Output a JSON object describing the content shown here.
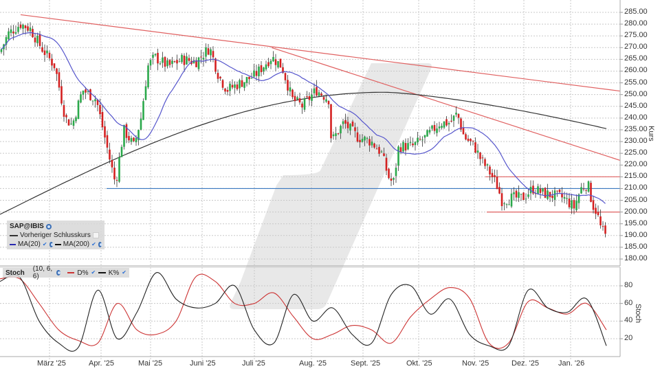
{
  "chart_data": [
    {
      "type": "candlestick",
      "title": "SAP@IBIS",
      "ylabel": "Kurs",
      "ylim": [
        177,
        288
      ],
      "yticks": [
        "285.00",
        "280.00",
        "275.00",
        "270.00",
        "265.00",
        "260.00",
        "255.00",
        "250.00",
        "245.00",
        "240.00",
        "235.00",
        "230.00",
        "225.00",
        "220.00",
        "215.00",
        "210.00",
        "205.00",
        "200.00",
        "195.00",
        "190.00",
        "185.00",
        "180.00"
      ],
      "x_ticks": [
        "März '25",
        "Apr. '25",
        "Mai '25",
        "Juni '25",
        "Juli '25",
        "Aug. '25",
        "Sept. '25",
        "Okt. '25",
        "Nov. '25",
        "Dez. '25",
        "Jan. '26"
      ],
      "legend": [
        "SAP@IBIS",
        "Vorheriger Schlusskurs",
        "MA(20)",
        "MA(200)"
      ],
      "approx_closes_by_month": {
        "Feb '25": 270,
        "März '25": 245,
        "Apr. '25": 235,
        "Mai '25": 265,
        "Juni '25": 268,
        "Juli '25": 262,
        "Aug. '25": 235,
        "Sept. '25": 225,
        "Okt. '25": 235,
        "Nov. '25": 212,
        "Dez. '25": 207,
        "Jan. '26": 190
      },
      "extremes": {
        "high": 284,
        "high_date": "Feb '25",
        "low_recent": 187,
        "low_recent_date": "Jan. '26"
      },
      "trendlines": [
        {
          "color": "#e06060",
          "from": {
            "x": "Feb '25",
            "y": 284
          },
          "to": {
            "x": "end",
            "y": 251.5
          },
          "label": "long downtrend resistance"
        },
        {
          "color": "#e06060",
          "from": {
            "x": "Juli '25",
            "y": 270
          },
          "to": {
            "x": "end",
            "y": 222
          },
          "label": "short downtrend resistance"
        },
        {
          "color": "#e06060",
          "from": {
            "x": "Nov. '25",
            "y": 215
          },
          "to": {
            "x": "end",
            "y": 215
          },
          "label": "horizontal resistance"
        },
        {
          "color": "#e06060",
          "from": {
            "x": "Nov. '25",
            "y": 200
          },
          "to": {
            "x": "end",
            "y": 200
          },
          "label": "horizontal support"
        },
        {
          "color": "#3a78c0",
          "from": {
            "x": "Apr. '25",
            "y": 210
          },
          "to": {
            "x": "end",
            "y": 210
          },
          "label": "horizontal support"
        }
      ],
      "series": [
        {
          "name": "MA(20)",
          "color": "#5555cc"
        },
        {
          "name": "MA(200)",
          "color": "#333333"
        }
      ]
    },
    {
      "type": "line",
      "title": "Stoch (10, 6, 6)",
      "ylabel": "Stoch",
      "yticks": [
        "80",
        "60",
        "40",
        "20"
      ],
      "ylim": [
        7,
        94
      ],
      "series": [
        {
          "name": "D%",
          "color": "#cc3333",
          "values_approx": [
            88,
            88,
            60,
            30,
            18,
            15,
            60,
            30,
            25,
            40,
            90,
            85,
            60,
            60,
            72,
            45,
            20,
            25,
            35,
            30,
            15,
            45,
            65,
            78,
            66,
            15,
            15,
            62,
            55,
            48,
            60,
            30
          ]
        },
        {
          "name": "K%",
          "color": "#222222",
          "values_approx": [
            85,
            90,
            40,
            15,
            10,
            75,
            20,
            50,
            95,
            65,
            55,
            60,
            80,
            30,
            15,
            70,
            40,
            55,
            25,
            15,
            70,
            80,
            48,
            65,
            25,
            12,
            12,
            75,
            55,
            50,
            65,
            12
          ]
        }
      ]
    }
  ],
  "legend_main": {
    "title": "SAP@IBIS",
    "prev_close": "Vorheriger Schlusskurs",
    "ma20": "MA(20)",
    "ma200": "MA(200)"
  },
  "legend_stoch": {
    "title": "Stoch",
    "params": "(10, 6, 6)",
    "d": "D%",
    "k": "K%"
  },
  "axis": {
    "price_label": "Kurs",
    "stoch_label": "Stoch",
    "price_ticks": [
      "285.00",
      "280.00",
      "275.00",
      "270.00",
      "265.00",
      "260.00",
      "255.00",
      "250.00",
      "245.00",
      "240.00",
      "235.00",
      "230.00",
      "225.00",
      "220.00",
      "215.00",
      "210.00",
      "205.00",
      "200.00",
      "195.00",
      "190.00",
      "185.00",
      "180.00"
    ],
    "stoch_ticks": [
      "80",
      "60",
      "40",
      "20"
    ],
    "months": [
      "März '25",
      "Apr. '25",
      "Mai '25",
      "Juni '25",
      "Juli '25",
      "Aug. '25",
      "Sept. '25",
      "Okt. '25",
      "Nov. '25",
      "Dez. '25",
      "Jan. '26"
    ]
  },
  "colors": {
    "up": "#2aa84a",
    "down": "#d42020",
    "wick": "#222222",
    "ma20": "#5555cc",
    "ma200": "#333333",
    "trend": "#e06060",
    "support_blue": "#3a78c0",
    "stoch_d": "#cc3333",
    "stoch_k": "#222222",
    "grid": "#c8c8c8"
  }
}
